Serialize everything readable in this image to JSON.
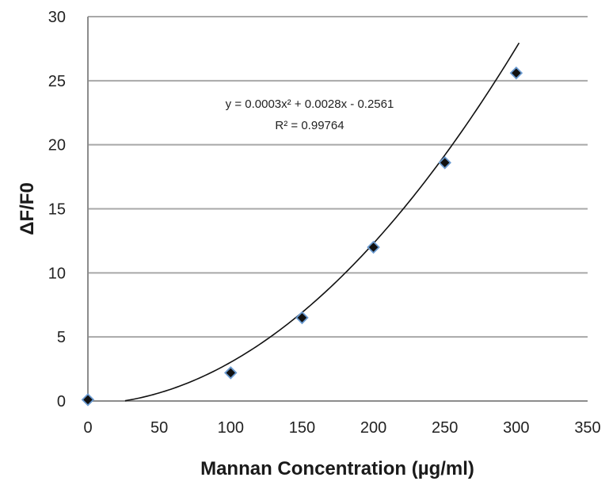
{
  "chart_data": {
    "type": "scatter",
    "xlabel": "Mannan Concentration (µg/ml)",
    "ylabel": "ΔF/F0",
    "xlim": [
      0,
      350
    ],
    "ylim": [
      0,
      30
    ],
    "xticks": [
      0,
      50,
      100,
      150,
      200,
      250,
      300,
      350
    ],
    "yticks": [
      0,
      5,
      10,
      15,
      20,
      25,
      30
    ],
    "grid": "horizontal",
    "series": [
      {
        "x": [
          0,
          100,
          150,
          200,
          250,
          300
        ],
        "y": [
          0.1,
          2.2,
          6.5,
          12.0,
          18.6,
          25.6
        ],
        "marker": "diamond",
        "marker_color": "#111111",
        "marker_edge": "#6b9bd1"
      }
    ],
    "trendline": {
      "type": "polynomial",
      "coefficients": [
        0.0003,
        0.0028,
        -0.2561
      ],
      "equation": "y = 0.0003x² + 0.0028x - 0.2561",
      "r_squared": "R² = 0.99764",
      "color": "#111111"
    }
  }
}
